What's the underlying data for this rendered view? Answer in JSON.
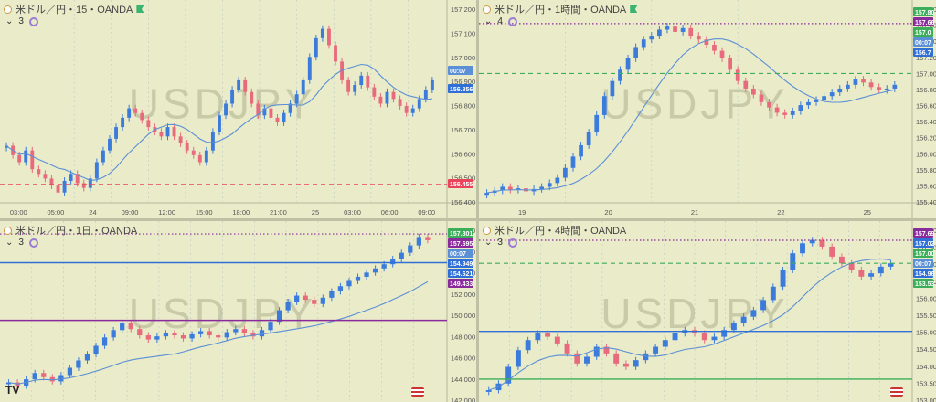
{
  "watermark": "USDJPY",
  "colors": {
    "bg": "#e9ebc9",
    "up": "#3a7bdc",
    "down": "#e86b7d",
    "ma": "#5b8fd6",
    "grid": "#9fb3c8",
    "red_level": "#e9455a",
    "purple_level": "#8a2b9b",
    "blue_level": "#2f6fd6",
    "green_level": "#3cae5a"
  },
  "panels": [
    {
      "id": "p15m",
      "title": "米ドル／円・15・OANDA",
      "sub": "3",
      "y_ticks": [
        "157.200",
        "157.100",
        "157.000",
        "156.900",
        "156.800",
        "156.700",
        "156.600",
        "156.500",
        "156.400"
      ],
      "x_ticks": [
        "03:00",
        "05:00",
        "24",
        "09:00",
        "12:00",
        "15:00",
        "18:00",
        "21:00",
        "25",
        "03:00",
        "06:00",
        "09:00"
      ],
      "price_tags": [
        {
          "text": "00:07",
          "color": "#5b8fd6"
        },
        {
          "text": "156.856",
          "color": "#2f6fd6"
        },
        {
          "text": "156.455",
          "color": "#e9455a"
        }
      ]
    },
    {
      "id": "p1h",
      "title": "米ドル／円・1時間・OANDA",
      "sub": "4",
      "y_ticks": [
        "157.80",
        "157.60",
        "157.40",
        "157.20",
        "157.00",
        "156.80",
        "156.60",
        "156.40",
        "156.20",
        "156.00",
        "155.80",
        "155.60",
        "155.40"
      ],
      "x_ticks": [
        "19",
        "20",
        "21",
        "22",
        "25"
      ],
      "price_tags": [
        {
          "text": "157.80",
          "color": "#3cae5a"
        },
        {
          "text": "157.66",
          "color": "#8a2b9b"
        },
        {
          "text": "157.0",
          "color": "#3cae5a"
        },
        {
          "text": "00:07",
          "color": "#5b8fd6"
        },
        {
          "text": "156.7",
          "color": "#2f6fd6"
        }
      ]
    },
    {
      "id": "p1d",
      "title": "米ドル／円・1日・OANDA",
      "sub": "3",
      "y_ticks": [
        "158.000",
        "156.000",
        "154.000",
        "152.000",
        "150.000",
        "148.000",
        "146.000",
        "144.000",
        "142.000"
      ],
      "x_ticks": [],
      "price_tags": [
        {
          "text": "157.801",
          "color": "#3cae5a"
        },
        {
          "text": "157.695",
          "color": "#8a2b9b"
        },
        {
          "text": "00:07",
          "color": "#5b8fd6"
        },
        {
          "text": "154.949",
          "color": "#2f6fd6"
        },
        {
          "text": "154.621",
          "color": "#2f6fd6"
        },
        {
          "text": "149.433",
          "color": "#8a2b9b"
        }
      ]
    },
    {
      "id": "p4h",
      "title": "米ドル／円・4時間・OANDA",
      "sub": "3",
      "y_ticks": [
        "158.000",
        "157.500",
        "157.000",
        "156.500",
        "156.000",
        "155.500",
        "155.000",
        "154.500",
        "154.000",
        "153.500",
        "153.000"
      ],
      "x_ticks": [],
      "price_tags": [
        {
          "text": "157.69",
          "color": "#8a2b9b"
        },
        {
          "text": "157.02",
          "color": "#2f6fd6"
        },
        {
          "text": "157.00",
          "color": "#3cae5a"
        },
        {
          "text": "00:07",
          "color": "#5b8fd6"
        },
        {
          "text": "154.96",
          "color": "#2f6fd6"
        },
        {
          "text": "153.53",
          "color": "#3cae5a"
        }
      ]
    }
  ],
  "chart_data": [
    {
      "type": "candlestick",
      "title": "米ドル／円・15・OANDA",
      "ylim": [
        156.38,
        157.22
      ],
      "levels": [
        {
          "value": 156.455,
          "color": "red_level",
          "style": "dashed"
        }
      ],
      "close": [
        156.62,
        156.58,
        156.55,
        156.6,
        156.52,
        156.5,
        156.48,
        156.45,
        156.42,
        156.47,
        156.5,
        156.46,
        156.44,
        156.48,
        156.55,
        156.6,
        156.65,
        156.7,
        156.74,
        156.78,
        156.76,
        156.73,
        156.7,
        156.68,
        156.66,
        156.7,
        156.66,
        156.63,
        156.6,
        156.58,
        156.55,
        156.6,
        156.68,
        156.75,
        156.8,
        156.86,
        156.9,
        156.85,
        156.8,
        156.75,
        156.78,
        156.74,
        156.72,
        156.76,
        156.8,
        156.84,
        156.9,
        157.0,
        157.08,
        157.12,
        157.05,
        156.98,
        156.9,
        156.85,
        156.88,
        156.92,
        156.87,
        156.83,
        156.8,
        156.85,
        156.82,
        156.79,
        156.76,
        156.78,
        156.82,
        156.86,
        156.9
      ],
      "ma_period": 10
    },
    {
      "type": "candlestick",
      "title": "米ドル／円・1時間・OANDA",
      "ylim": [
        155.3,
        157.9
      ],
      "levels": [
        {
          "value": 157.66,
          "color": "purple_level",
          "style": "dotted"
        },
        {
          "value": 157.0,
          "color": "green_level",
          "style": "dashed"
        }
      ],
      "close": [
        155.42,
        155.45,
        155.5,
        155.46,
        155.48,
        155.44,
        155.47,
        155.5,
        155.55,
        155.62,
        155.75,
        155.9,
        156.05,
        156.22,
        156.45,
        156.7,
        156.9,
        157.05,
        157.2,
        157.35,
        157.45,
        157.5,
        157.58,
        157.62,
        157.55,
        157.6,
        157.5,
        157.45,
        157.38,
        157.3,
        157.2,
        157.05,
        156.9,
        156.8,
        156.72,
        156.62,
        156.55,
        156.48,
        156.45,
        156.5,
        156.58,
        156.62,
        156.65,
        156.7,
        156.75,
        156.8,
        156.85,
        156.92,
        156.88,
        156.82,
        156.78,
        156.8,
        156.85
      ],
      "ma_period": 12
    },
    {
      "type": "candlestick",
      "title": "米ドル／円・1日・OANDA",
      "ylim": [
        141.8,
        158.4
      ],
      "levels": [
        {
          "value": 157.695,
          "color": "purple_level",
          "style": "dotted"
        },
        {
          "value": 154.949,
          "color": "blue_level",
          "style": "solid"
        },
        {
          "value": 149.433,
          "color": "purple_level",
          "style": "solid"
        }
      ],
      "close": [
        143.5,
        143.2,
        143.8,
        144.4,
        144.0,
        143.6,
        144.2,
        144.9,
        145.6,
        146.2,
        147.0,
        147.8,
        148.5,
        149.2,
        148.6,
        148.0,
        147.6,
        147.9,
        148.2,
        148.0,
        147.7,
        148.1,
        148.4,
        148.0,
        147.8,
        148.3,
        148.6,
        148.2,
        147.9,
        148.5,
        149.3,
        150.4,
        151.2,
        151.8,
        151.4,
        151.0,
        151.6,
        152.2,
        152.7,
        153.2,
        153.6,
        154.0,
        154.4,
        154.8,
        155.3,
        155.9,
        156.6,
        157.4,
        157.1
      ],
      "ma_period": 20
    },
    {
      "type": "candlestick",
      "title": "米ドル／円・4時間・OANDA",
      "ylim": [
        152.9,
        158.1
      ],
      "levels": [
        {
          "value": 157.69,
          "color": "purple_level",
          "style": "dotted"
        },
        {
          "value": 157.0,
          "color": "green_level",
          "style": "dashed"
        },
        {
          "value": 154.96,
          "color": "blue_level",
          "style": "solid"
        },
        {
          "value": 153.53,
          "color": "green_level",
          "style": "solid"
        }
      ],
      "close": [
        153.2,
        153.4,
        153.9,
        154.4,
        154.7,
        154.9,
        154.8,
        154.6,
        154.3,
        154.0,
        154.2,
        154.5,
        154.3,
        154.0,
        153.9,
        154.1,
        154.3,
        154.5,
        154.7,
        154.9,
        155.0,
        154.9,
        154.7,
        154.8,
        155.0,
        155.2,
        155.4,
        155.6,
        155.9,
        156.3,
        156.8,
        157.3,
        157.6,
        157.7,
        157.5,
        157.2,
        157.0,
        156.8,
        156.6,
        156.7,
        156.9,
        157.0
      ],
      "ma_period": 10
    }
  ]
}
